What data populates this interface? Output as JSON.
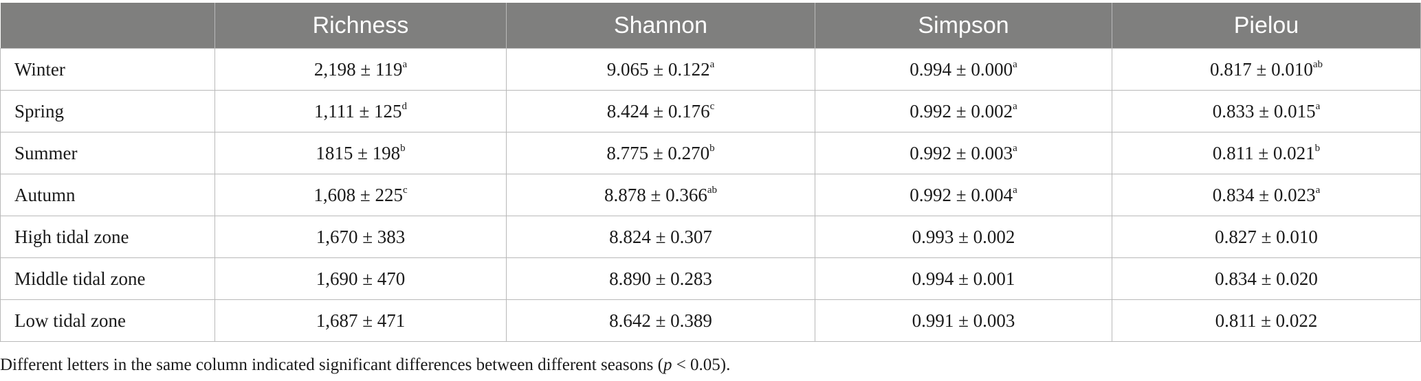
{
  "table": {
    "headers": [
      "",
      "Richness",
      "Shannon",
      "Simpson",
      "Pielou"
    ],
    "rows": [
      {
        "label": "Winter",
        "cells": [
          {
            "value": "2,198 ± 119",
            "sup": "a"
          },
          {
            "value": "9.065 ± 0.122",
            "sup": "a"
          },
          {
            "value": "0.994 ± 0.000",
            "sup": "a"
          },
          {
            "value": "0.817 ± 0.010",
            "sup": "ab"
          }
        ]
      },
      {
        "label": "Spring",
        "cells": [
          {
            "value": "1,111 ± 125",
            "sup": "d"
          },
          {
            "value": "8.424 ± 0.176",
            "sup": "c"
          },
          {
            "value": "0.992 ± 0.002",
            "sup": "a"
          },
          {
            "value": "0.833 ± 0.015",
            "sup": "a"
          }
        ]
      },
      {
        "label": "Summer",
        "cells": [
          {
            "value": "1815 ± 198",
            "sup": "b"
          },
          {
            "value": "8.775 ± 0.270",
            "sup": "b"
          },
          {
            "value": "0.992 ± 0.003",
            "sup": "a"
          },
          {
            "value": "0.811 ± 0.021",
            "sup": "b"
          }
        ]
      },
      {
        "label": "Autumn",
        "cells": [
          {
            "value": "1,608 ± 225",
            "sup": "c"
          },
          {
            "value": "8.878 ± 0.366",
            "sup": "ab"
          },
          {
            "value": "0.992 ± 0.004",
            "sup": "a"
          },
          {
            "value": "0.834 ± 0.023",
            "sup": "a"
          }
        ]
      },
      {
        "label": "High tidal zone",
        "cells": [
          {
            "value": "1,670 ± 383",
            "sup": ""
          },
          {
            "value": "8.824 ± 0.307",
            "sup": ""
          },
          {
            "value": "0.993 ± 0.002",
            "sup": ""
          },
          {
            "value": "0.827 ± 0.010",
            "sup": ""
          }
        ]
      },
      {
        "label": "Middle tidal zone",
        "cells": [
          {
            "value": "1,690 ± 470",
            "sup": ""
          },
          {
            "value": "8.890 ± 0.283",
            "sup": ""
          },
          {
            "value": "0.994 ± 0.001",
            "sup": ""
          },
          {
            "value": "0.834 ± 0.020",
            "sup": ""
          }
        ]
      },
      {
        "label": "Low tidal zone",
        "cells": [
          {
            "value": "1,687 ± 471",
            "sup": ""
          },
          {
            "value": "8.642 ± 0.389",
            "sup": ""
          },
          {
            "value": "0.991 ± 0.003",
            "sup": ""
          },
          {
            "value": "0.811 ± 0.022",
            "sup": ""
          }
        ]
      }
    ]
  },
  "footnote": {
    "before": "Different letters in the same column indicated significant differences between different seasons (",
    "italic": "p",
    "after": " < 0.05)."
  },
  "colors": {
    "header_background": "#7f7f7e",
    "header_text": "#ffffff",
    "grid_line": "#b9b9b9"
  }
}
